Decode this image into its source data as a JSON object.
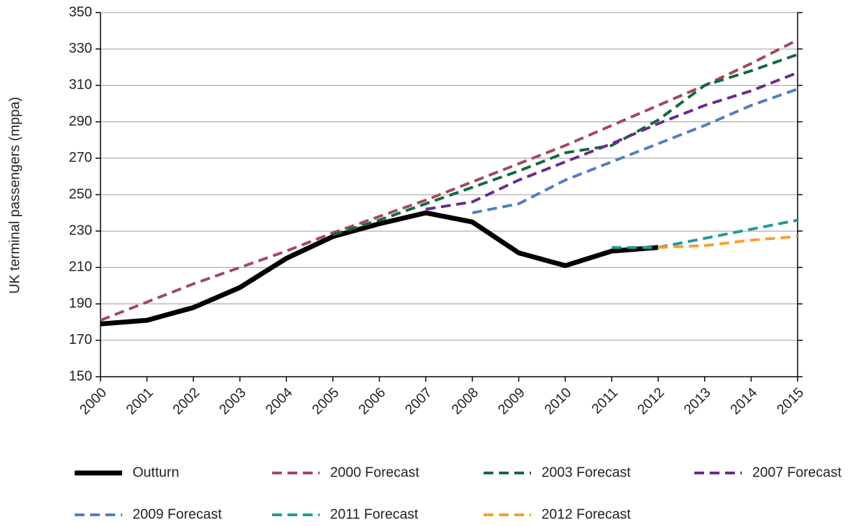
{
  "chart_data": {
    "type": "line",
    "y_label": "UK terminal passengers (mppa)",
    "x": [
      2000,
      2001,
      2002,
      2003,
      2004,
      2005,
      2006,
      2007,
      2008,
      2009,
      2010,
      2011,
      2012,
      2013,
      2014,
      2015
    ],
    "xlim": [
      2000,
      2015
    ],
    "xticks": [
      2000,
      2001,
      2002,
      2003,
      2004,
      2005,
      2006,
      2007,
      2008,
      2009,
      2010,
      2011,
      2012,
      2013,
      2014,
      2015
    ],
    "ylim": [
      150,
      350
    ],
    "yticks": [
      150,
      170,
      190,
      210,
      230,
      250,
      270,
      290,
      310,
      330,
      350
    ],
    "grid": true,
    "legend": "bottom",
    "series": [
      {
        "name": "Outturn",
        "color": "#000000",
        "values": [
          179,
          181,
          188,
          199,
          215,
          227,
          234,
          240,
          235,
          218,
          211,
          219,
          221,
          null,
          null,
          null
        ]
      },
      {
        "name": "2000 Forecast",
        "color": "#a5485a",
        "values": [
          181,
          191,
          201,
          210,
          219,
          229,
          238,
          247,
          257,
          267,
          277,
          288,
          299,
          310,
          322,
          335
        ]
      },
      {
        "name": "2003 Forecast",
        "color": "#0e6b3c",
        "values": [
          null,
          null,
          null,
          null,
          null,
          228,
          236,
          245,
          254,
          263,
          273,
          277,
          291,
          310,
          318,
          327
        ]
      },
      {
        "name": "2007 Forecast",
        "color": "#6a2a8c",
        "values": [
          null,
          null,
          null,
          null,
          null,
          null,
          null,
          242,
          246,
          258,
          268,
          278,
          289,
          299,
          307,
          317
        ]
      },
      {
        "name": "2009 Forecast",
        "color": "#4f7fc0",
        "values": [
          null,
          null,
          null,
          null,
          null,
          null,
          null,
          null,
          240,
          245,
          258,
          268,
          278,
          288,
          299,
          308
        ]
      },
      {
        "name": "2011 Forecast",
        "color": "#1f9b96",
        "values": [
          null,
          null,
          null,
          null,
          null,
          null,
          null,
          null,
          null,
          null,
          null,
          221,
          221,
          226,
          231,
          236
        ]
      },
      {
        "name": "2012 Forecast",
        "color": "#f5a02c",
        "values": [
          null,
          null,
          null,
          null,
          null,
          null,
          null,
          null,
          null,
          null,
          null,
          null,
          221,
          222,
          225,
          227
        ]
      }
    ]
  }
}
